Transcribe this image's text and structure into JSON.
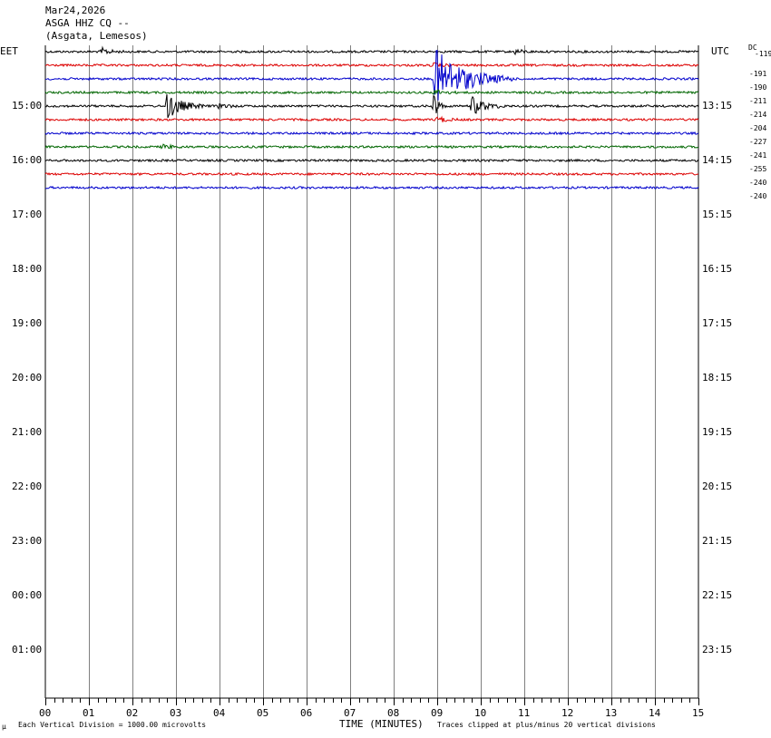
{
  "header": {
    "date": "Mar24,2026",
    "station": "ASGA HHZ CQ --",
    "location": "(Asgata, Lemesos)"
  },
  "left_tz": "EET",
  "right_tz": "UTC",
  "dc_label": "DC",
  "footer": {
    "corner_mark": "μ",
    "scale_note": "Each Vertical Division = 1000.00 microvolts",
    "xlabel": "TIME (MINUTES)",
    "clip_note": "Traces clipped at plus/minus 20 vertical divisions"
  },
  "colors": {
    "trace_cycle": [
      "#000000",
      "#dd0000",
      "#0000cc",
      "#006600"
    ],
    "grid": "#808080",
    "background": "#ffffff"
  },
  "chart_data": {
    "type": "line",
    "title": "ASGA HHZ CQ --",
    "xlabel": "TIME (MINUTES)",
    "xlim": [
      0,
      15
    ],
    "x_ticks": [
      "00",
      "01",
      "02",
      "03",
      "04",
      "05",
      "06",
      "07",
      "08",
      "09",
      "10",
      "11",
      "12",
      "13",
      "14",
      "15"
    ],
    "row_interval_minutes": 15,
    "left_hour_labels": [
      "15:00",
      "16:00",
      "17:00",
      "18:00",
      "19:00",
      "20:00",
      "21:00",
      "22:00",
      "23:00",
      "00:00",
      "01:00"
    ],
    "right_hour_labels": [
      "13:15",
      "14:15",
      "15:15",
      "16:15",
      "17:15",
      "18:15",
      "19:15",
      "20:15",
      "21:15",
      "22:15",
      "23:15"
    ],
    "total_rows": 48,
    "traces": [
      {
        "row": 0,
        "dc": "-119",
        "events": [
          {
            "t": 1.3,
            "amp": 0.25,
            "dur": 0.5
          },
          {
            "t": 10.8,
            "amp": 0.2,
            "dur": 0.4
          }
        ]
      },
      {
        "row": 1,
        "dc": "-191",
        "events": [
          {
            "t": 8.9,
            "amp": 0.15,
            "dur": 0.6
          }
        ]
      },
      {
        "row": 2,
        "dc": "-190",
        "events": [
          {
            "t": 8.95,
            "amp": 2.3,
            "dur": 1.8
          }
        ]
      },
      {
        "row": 3,
        "dc": "-211",
        "events": [
          {
            "t": 8.95,
            "amp": 0.2,
            "dur": 0.6
          }
        ]
      },
      {
        "row": 4,
        "dc": "-214",
        "events": [
          {
            "t": 2.8,
            "amp": 1.0,
            "dur": 0.9
          },
          {
            "t": 4.0,
            "amp": 0.2,
            "dur": 0.5
          },
          {
            "t": 8.9,
            "amp": 1.2,
            "dur": 0.3
          },
          {
            "t": 9.8,
            "amp": 0.7,
            "dur": 0.8
          }
        ]
      },
      {
        "row": 5,
        "dc": "-204",
        "events": [
          {
            "t": 9.0,
            "amp": 0.25,
            "dur": 0.5
          }
        ]
      },
      {
        "row": 6,
        "dc": "-227",
        "events": []
      },
      {
        "row": 7,
        "dc": "-241",
        "events": [
          {
            "t": 2.7,
            "amp": 0.15,
            "dur": 0.6
          }
        ]
      },
      {
        "row": 8,
        "dc": "-255",
        "events": []
      },
      {
        "row": 9,
        "dc": "-240",
        "events": []
      },
      {
        "row": 10,
        "dc": "-240",
        "events": []
      }
    ]
  }
}
